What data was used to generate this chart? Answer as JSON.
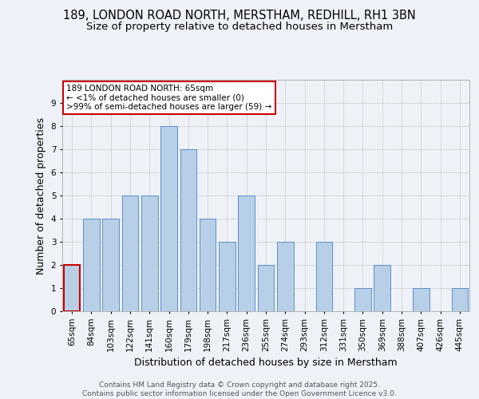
{
  "title_line1": "189, LONDON ROAD NORTH, MERSTHAM, REDHILL, RH1 3BN",
  "title_line2": "Size of property relative to detached houses in Merstham",
  "xlabel": "Distribution of detached houses by size in Merstham",
  "ylabel": "Number of detached properties",
  "categories": [
    "65sqm",
    "84sqm",
    "103sqm",
    "122sqm",
    "141sqm",
    "160sqm",
    "179sqm",
    "198sqm",
    "217sqm",
    "236sqm",
    "255sqm",
    "274sqm",
    "293sqm",
    "312sqm",
    "331sqm",
    "350sqm",
    "369sqm",
    "388sqm",
    "407sqm",
    "426sqm",
    "445sqm"
  ],
  "values": [
    2,
    4,
    4,
    5,
    5,
    8,
    7,
    4,
    3,
    5,
    2,
    3,
    0,
    3,
    0,
    1,
    2,
    0,
    1,
    0,
    1
  ],
  "bar_color": "#b8cfe8",
  "bar_edge_color": "#5b8fc9",
  "highlight_bar_index": 0,
  "highlight_bar_edge_color": "#cc0000",
  "annotation_text": "189 LONDON ROAD NORTH: 65sqm\n← <1% of detached houses are smaller (0)\n>99% of semi-detached houses are larger (59) →",
  "annotation_box_facecolor": "#ffffff",
  "annotation_box_edgecolor": "#cc0000",
  "ylim": [
    0,
    10
  ],
  "yticks": [
    0,
    1,
    2,
    3,
    4,
    5,
    6,
    7,
    8,
    9
  ],
  "grid_color": "#cccccc",
  "background_color": "#eef2f8",
  "footer_text": "Contains HM Land Registry data © Crown copyright and database right 2025.\nContains public sector information licensed under the Open Government Licence v3.0.",
  "title_fontsize": 10.5,
  "subtitle_fontsize": 9.5,
  "tick_fontsize": 7.5,
  "ylabel_fontsize": 9,
  "xlabel_fontsize": 9,
  "annotation_fontsize": 7.5,
  "footer_fontsize": 6.5
}
